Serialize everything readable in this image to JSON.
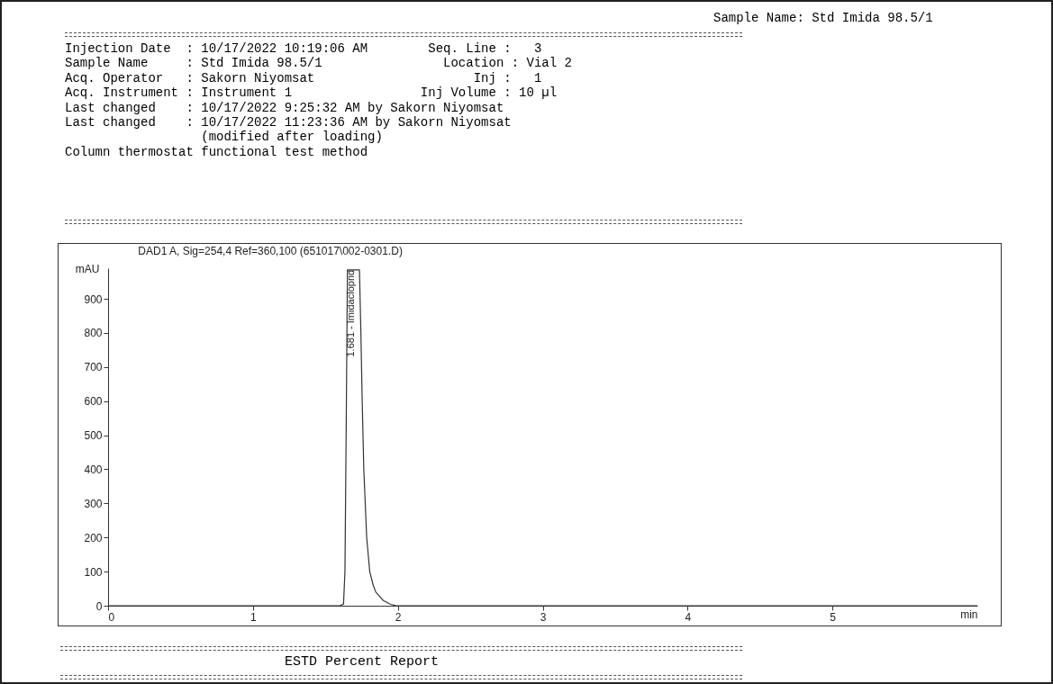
{
  "chart_data": {
    "type": "line",
    "title": "DAD1 A, Sig=254,4 Ref=360,100 (651017\\002-0301.D)",
    "xlabel": "min",
    "ylabel": "mAU",
    "annotations": [
      "Sample Name: Std Imida 98.5/1",
      "Injection Date  : 10/17/2022 10:19:06 AM        Seq. Line :   3",
      "Sample Name     : Std Imida 98.5/1                Location : Vial 2",
      "Acq. Operator   : Sakorn Niyomsat                     Inj :   1",
      "Acq. Instrument : Instrument 1                 Inj Volume : 10 µl",
      "Last changed    : 10/17/2022 9:25:32 AM by Sakorn Niyomsat",
      "Last changed    : 10/17/2022 11:23:36 AM by Sakorn Niyomsat",
      "                  (modified after loading)",
      "Column thermostat functional test method",
      {
        "text": "1.681 - Imidacloprid",
        "x": 1.681,
        "y": 985
      },
      "ESTD Percent Report"
    ],
    "series": [
      {
        "color": "#333333",
        "x": [
          0,
          1.6,
          1.625,
          1.635,
          1.645,
          1.652,
          1.735,
          1.745,
          1.754,
          1.765,
          1.785,
          1.806,
          1.83,
          1.848,
          1.9,
          1.95,
          1.99,
          6.0
        ],
        "values": [
          0,
          0,
          5,
          100,
          600,
          985,
          985,
          800,
          600,
          400,
          200,
          100,
          60,
          40,
          15,
          4,
          0,
          0
        ]
      }
    ],
    "xlim": [
      0,
      6.0
    ],
    "xticks": [
      0,
      1,
      2,
      3,
      4,
      5
    ],
    "ylim": [
      0,
      990
    ],
    "yticks": [
      0,
      100,
      200,
      300,
      400,
      500,
      600,
      700,
      800,
      900
    ],
    "grid": false,
    "legend": false,
    "marker": "none",
    "line_style": "solid"
  }
}
